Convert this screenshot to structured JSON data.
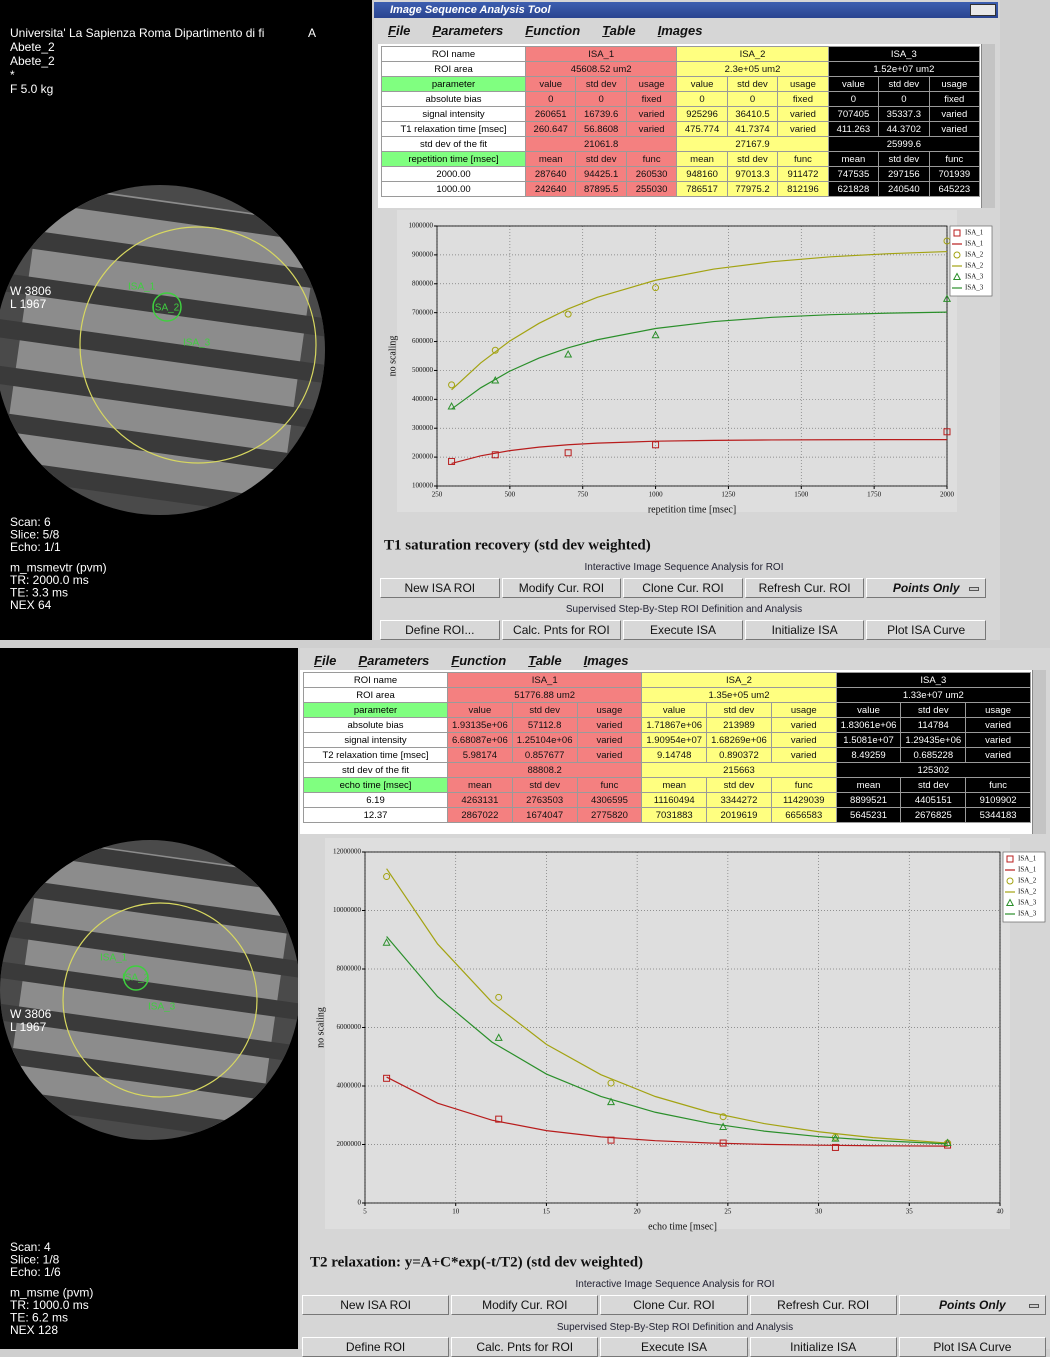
{
  "panels": [
    {
      "image": {
        "header": [
          "Universita' La Sapienza Roma Dipartimento di fi",
          "Abete_2",
          "Abete_2",
          "*",
          "F 5.0 kg"
        ],
        "corner": "A",
        "window": [
          "W 3806",
          "L 1967"
        ],
        "roi_labels": [
          "ISA_1",
          "ISA_2",
          "ISA_3"
        ],
        "footer": [
          "Scan: 6",
          "Slice: 5/8",
          "Echo: 1/1",
          "m_msmevtr (pvm)",
          "TR: 2000.0 ms",
          "TE: 3.3 ms",
          "NEX 64"
        ]
      },
      "window_title": "Image Sequence Analysis Tool",
      "menu": [
        "File",
        "Parameters",
        "Function",
        "Table",
        "Images"
      ],
      "table": {
        "rows": [
          [
            "ROI name",
            "ISA_1",
            "ISA_2",
            "ISA_3"
          ],
          [
            "ROI area",
            "45608.52 um2",
            "2.3e+05 um2",
            "1.52e+07 um2"
          ],
          [
            "parameter",
            "value",
            "std dev",
            "usage",
            "value",
            "std dev",
            "usage",
            "value",
            "std dev",
            "usage"
          ],
          [
            "absolute bias",
            "0",
            "0",
            "fixed",
            "0",
            "0",
            "fixed",
            "0",
            "0",
            "fixed"
          ],
          [
            "signal intensity",
            "260651",
            "16739.6",
            "varied",
            "925296",
            "36410.5",
            "varied",
            "707405",
            "35337.3",
            "varied"
          ],
          [
            "T1 relaxation time [msec]",
            "260.647",
            "56.8608",
            "varied",
            "475.774",
            "41.7374",
            "varied",
            "411.263",
            "44.3702",
            "varied"
          ],
          [
            "std dev of the fit",
            "21061.8",
            "27167.9",
            "25999.6"
          ],
          [
            "repetition time [msec]",
            "mean",
            "std dev",
            "func",
            "mean",
            "std dev",
            "func",
            "mean",
            "std dev",
            "func"
          ],
          [
            "2000.00",
            "287640",
            "94425.1",
            "260530",
            "948160",
            "97013.3",
            "911472",
            "747535",
            "297156",
            "701939"
          ],
          [
            "1000.00",
            "242640",
            "87895.5",
            "255030",
            "786517",
            "77975.2",
            "812196",
            "621828",
            "240540",
            "645223"
          ]
        ]
      },
      "interactive_label": "Interactive Image Sequence Analysis for ROI",
      "buttons_1": [
        "New ISA ROI",
        "Modify Cur. ROI",
        "Clone Cur. ROI",
        "Refresh Cur. ROI",
        "Points Only"
      ],
      "supervised_label": "Supervised Step-By-Step ROI Definition and Analysis",
      "buttons_2": [
        "Define ROI...",
        "Calc. Pnts for ROI",
        "Execute ISA",
        "Initialize ISA",
        "Plot ISA Curve"
      ]
    },
    {
      "image": {
        "window": [
          "W 3806",
          "L 1967"
        ],
        "roi_labels": [
          "ISA_1",
          "ISA_2",
          "ISA_3"
        ],
        "footer": [
          "Scan: 4",
          "Slice: 1/8",
          "Echo: 1/6",
          "m_msme (pvm)",
          "TR: 1000.0 ms",
          "TE: 6.2 ms",
          "NEX 128"
        ]
      },
      "menu": [
        "File",
        "Parameters",
        "Function",
        "Table",
        "Images"
      ],
      "table": {
        "rows": [
          [
            "ROI name",
            "ISA_1",
            "ISA_2",
            "ISA_3"
          ],
          [
            "ROI area",
            "51776.88 um2",
            "1.35e+05 um2",
            "1.33e+07 um2"
          ],
          [
            "parameter",
            "value",
            "std dev",
            "usage",
            "value",
            "std dev",
            "usage",
            "value",
            "std dev",
            "usage"
          ],
          [
            "absolute bias",
            "1.93135e+06",
            "57112.8",
            "varied",
            "1.71867e+06",
            "213989",
            "varied",
            "1.83061e+06",
            "114784",
            "varied"
          ],
          [
            "signal intensity",
            "6.68087e+06",
            "1.25104e+06",
            "varied",
            "1.90954e+07",
            "1.68269e+06",
            "varied",
            "1.5081e+07",
            "1.29435e+06",
            "varied"
          ],
          [
            "T2 relaxation time [msec]",
            "5.98174",
            "0.857677",
            "varied",
            "9.14748",
            "0.890372",
            "varied",
            "8.49259",
            "0.685228",
            "varied"
          ],
          [
            "std dev of the fit",
            "88808.2",
            "215663",
            "125302"
          ],
          [
            "echo time [msec]",
            "mean",
            "std dev",
            "func",
            "mean",
            "std dev",
            "func",
            "mean",
            "std dev",
            "func"
          ],
          [
            "6.19",
            "4263131",
            "2763503",
            "4306595",
            "11160494",
            "3344272",
            "11429039",
            "8899521",
            "4405151",
            "9109902"
          ],
          [
            "12.37",
            "2867022",
            "1674047",
            "2775820",
            "7031883",
            "2019619",
            "6656583",
            "5645231",
            "2676825",
            "5344183"
          ]
        ]
      },
      "interactive_label": "Interactive Image Sequence Analysis for ROI",
      "buttons_1": [
        "New ISA ROI",
        "Modify Cur. ROI",
        "Clone Cur. ROI",
        "Refresh Cur. ROI",
        "Points Only"
      ],
      "supervised_label": "Supervised Step-By-Step ROI Definition and Analysis",
      "buttons_2": [
        "Define ROI",
        "Calc. Pnts for ROI",
        "Execute ISA",
        "Initialize ISA",
        "Plot ISA Curve"
      ]
    }
  ],
  "chart_data": [
    {
      "type": "scatter",
      "title": "T1 saturation recovery (std dev weighted)",
      "x_label": "repetition time [msec]",
      "y_label": "no scaling",
      "xlim": [
        250,
        2000
      ],
      "xticks": [
        250,
        500,
        750,
        1000,
        1250,
        1500,
        1750,
        2000
      ],
      "ylim": [
        100000,
        1000000
      ],
      "yticks": [
        100000,
        200000,
        300000,
        400000,
        500000,
        600000,
        700000,
        800000,
        900000,
        1000000
      ],
      "grid": true,
      "legend": "right",
      "series": [
        {
          "name": "ISA_1",
          "color": "#b81c1c",
          "marker": "square",
          "x": [
            300,
            450,
            700,
            1000,
            2000
          ],
          "values": [
            185000,
            208000,
            215000,
            242640,
            287640
          ]
        },
        {
          "name": "ISA_1",
          "color": "#b81c1c",
          "style": "line",
          "x": [
            300,
            400,
            500,
            600,
            700,
            800,
            1000,
            1200,
            1400,
            1600,
            1800,
            2000
          ],
          "values": [
            178200,
            204500,
            222400,
            234600,
            242900,
            248500,
            255030,
            258000,
            259400,
            260100,
            260400,
            260530
          ]
        },
        {
          "name": "ISA_2",
          "color": "#a3a312",
          "marker": "circle",
          "x": [
            300,
            450,
            700,
            1000,
            2000
          ],
          "values": [
            450000,
            570000,
            695000,
            786517,
            948160
          ]
        },
        {
          "name": "ISA_2",
          "color": "#a3a312",
          "style": "line",
          "x": [
            300,
            400,
            500,
            600,
            700,
            800,
            1000,
            1200,
            1400,
            1600,
            1800,
            2000
          ],
          "values": [
            432800,
            526100,
            601800,
            663200,
            712800,
            753100,
            812196,
            851000,
            876500,
            893300,
            904200,
            911472
          ]
        },
        {
          "name": "ISA_3",
          "color": "#2a8f2a",
          "marker": "triangle",
          "x": [
            300,
            450,
            700,
            1000,
            2000
          ],
          "values": [
            375000,
            465000,
            555000,
            621828,
            747535
          ]
        },
        {
          "name": "ISA_3",
          "color": "#2a8f2a",
          "style": "line",
          "x": [
            300,
            400,
            500,
            600,
            700,
            800,
            1000,
            1200,
            1400,
            1600,
            1800,
            2000
          ],
          "values": [
            366300,
            439900,
            497700,
            542900,
            578400,
            606200,
            645223,
            669200,
            683900,
            693000,
            698500,
            701939
          ]
        }
      ]
    },
    {
      "type": "scatter",
      "title": "T2 relaxation: y=A+C*exp(-t/T2) (std dev weighted)",
      "x_label": "echo time [msec]",
      "y_label": "no scaling",
      "xlim": [
        5,
        40
      ],
      "xticks": [
        5,
        10,
        15,
        20,
        25,
        30,
        35,
        40
      ],
      "ylim": [
        0,
        12000000
      ],
      "yticks": [
        0,
        2000000,
        4000000,
        6000000,
        8000000,
        10000000,
        12000000
      ],
      "grid": true,
      "legend": "right",
      "series": [
        {
          "name": "ISA_1",
          "color": "#b81c1c",
          "marker": "square",
          "x": [
            6.19,
            12.37,
            18.56,
            24.74,
            30.93,
            37.11
          ],
          "values": [
            4263131,
            2867022,
            2150000,
            2050000,
            1900000,
            1980000
          ]
        },
        {
          "name": "ISA_1",
          "color": "#b81c1c",
          "style": "line",
          "x": [
            6.19,
            9,
            12,
            15,
            18,
            21,
            24,
            27,
            30,
            33,
            37.11
          ],
          "values": [
            4306595,
            3414000,
            2830000,
            2475000,
            2261000,
            2131000,
            2052000,
            2005000,
            1976000,
            1958000,
            1945000
          ]
        },
        {
          "name": "ISA_2",
          "color": "#a3a312",
          "marker": "circle",
          "x": [
            6.19,
            12.37,
            18.56,
            24.74,
            30.93,
            37.11
          ],
          "values": [
            11160494,
            7031883,
            4100000,
            2950000,
            2250000,
            2050000
          ]
        },
        {
          "name": "ISA_2",
          "color": "#a3a312",
          "style": "line",
          "x": [
            6.19,
            9,
            12,
            15,
            18,
            21,
            24,
            27,
            30,
            33,
            37.11
          ],
          "values": [
            11429039,
            8856000,
            6861000,
            5423000,
            4388000,
            3641000,
            3103000,
            2716000,
            2437000,
            2236000,
            2049000
          ]
        },
        {
          "name": "ISA_3",
          "color": "#2a8f2a",
          "marker": "triangle",
          "x": [
            6.19,
            12.37,
            18.56,
            24.74,
            30.93,
            37.11
          ],
          "values": [
            8899521,
            5645231,
            3450000,
            2600000,
            2200000,
            2050000
          ]
        },
        {
          "name": "ISA_3",
          "color": "#2a8f2a",
          "style": "line",
          "x": [
            6.19,
            9,
            12,
            15,
            18,
            21,
            24,
            27,
            30,
            33,
            37.11
          ],
          "values": [
            9109902,
            7056000,
            5501000,
            4409000,
            3642000,
            3102000,
            2725000,
            2458000,
            2271000,
            2140000,
            2021000
          ]
        }
      ]
    }
  ]
}
